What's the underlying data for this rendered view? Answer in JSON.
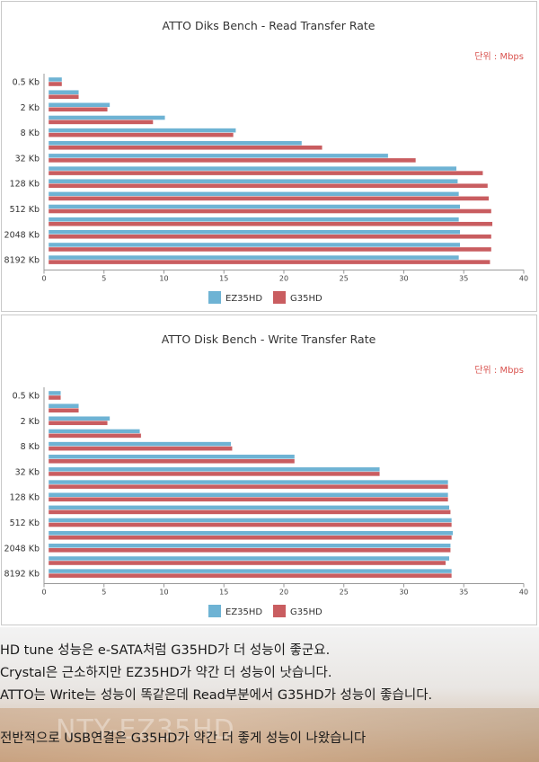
{
  "chart_data": [
    {
      "type": "bar",
      "orientation": "horizontal",
      "title": "ATTO Diks Bench - Read Transfer Rate",
      "unit_note": "단위 : Mbps",
      "categories": [
        "0.5 Kb",
        "",
        "2 Kb",
        "",
        "8 Kb",
        "",
        "32 Kb",
        "",
        "128 Kb",
        "",
        "512 Kb",
        "",
        "2048 Kb",
        "",
        "8192 Kb"
      ],
      "category_tick_labels": [
        "0.5 Kb",
        "2 Kb",
        "8 Kb",
        "32 Kb",
        "128 Kb",
        "512 Kb",
        "2048 Kb",
        "8192 Kb"
      ],
      "series": [
        {
          "name": "EZ35HD",
          "color": "#6eb3d4",
          "values": [
            1.5,
            2.9,
            5.5,
            10.1,
            16.0,
            21.5,
            28.7,
            34.4,
            34.5,
            34.6,
            34.7,
            34.6,
            34.7,
            34.7,
            34.6
          ]
        },
        {
          "name": "G35HD",
          "color": "#c95d60",
          "values": [
            1.5,
            2.9,
            5.3,
            9.1,
            15.8,
            23.2,
            31.0,
            36.6,
            37.0,
            37.1,
            37.3,
            37.4,
            37.3,
            37.3,
            37.2
          ]
        }
      ],
      "xlim": [
        0,
        40
      ],
      "x_ticks": [
        "0",
        "5",
        "10",
        "15",
        "20",
        "25",
        "30",
        "35",
        "40"
      ],
      "grid": false,
      "legend_position": "bottom-center"
    },
    {
      "type": "bar",
      "orientation": "horizontal",
      "title": "ATTO Disk Bench - Write Transfer Rate",
      "unit_note": "단위 : Mbps",
      "categories": [
        "0.5 Kb",
        "",
        "2 Kb",
        "",
        "8 Kb",
        "",
        "32 Kb",
        "",
        "128 Kb",
        "",
        "512 Kb",
        "",
        "2048 Kb",
        "",
        "8192 Kb"
      ],
      "category_tick_labels": [
        "0.5 Kb",
        "2 Kb",
        "8 Kb",
        "32 Kb",
        "128 Kb",
        "512 Kb",
        "2048 Kb",
        "8192 Kb"
      ],
      "series": [
        {
          "name": "EZ35HD",
          "color": "#6eb3d4",
          "values": [
            1.4,
            2.9,
            5.5,
            8.0,
            15.6,
            20.9,
            28.0,
            33.7,
            33.7,
            33.8,
            34.0,
            34.1,
            33.9,
            33.8,
            34.0
          ]
        },
        {
          "name": "G35HD",
          "color": "#c95d60",
          "values": [
            1.4,
            2.9,
            5.3,
            8.1,
            15.7,
            20.9,
            28.0,
            33.7,
            33.7,
            33.9,
            34.0,
            34.0,
            33.9,
            33.5,
            34.0
          ]
        }
      ],
      "xlim": [
        0,
        40
      ],
      "x_ticks": [
        "0",
        "5",
        "10",
        "15",
        "20",
        "25",
        "30",
        "35",
        "40"
      ],
      "grid": false,
      "legend_position": "bottom-center"
    }
  ],
  "notes": {
    "line1": "HD tune 성능은 e-SATA처럼 G35HD가 더 성능이 좋군요.",
    "line2": "Crystal은 근소하지만 EZ35HD가 약간 더 성능이 낫습니다.",
    "line3": "ATTO는 Write는 성능이 똑같은데 Read부분에서 G35HD가 성능이 좋습니다.",
    "line4": "전반적으로 USB연결은 G35HD가 약간 더 좋게 성능이 나왔습니다"
  },
  "background_photo": {
    "watermark_text": "NTY-EZ35HD"
  }
}
